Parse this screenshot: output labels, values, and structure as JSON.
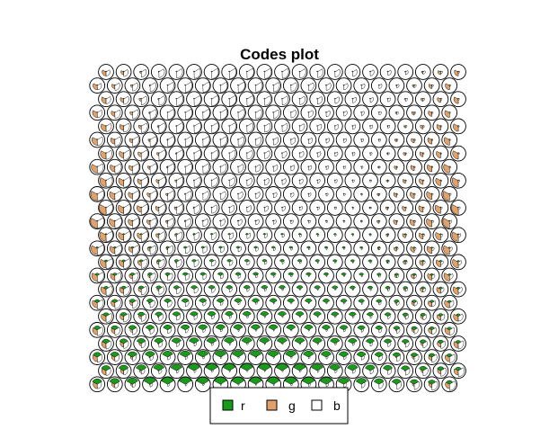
{
  "chart_data": {
    "type": "som-codes-fan",
    "title": "Codes plot",
    "grid": {
      "topology": "hexagonal",
      "columns": 21,
      "rows": 24
    },
    "variables": [
      "r",
      "g",
      "b"
    ],
    "colors": {
      "r": "#1a9a1a",
      "g": "#e0a26a",
      "b": "#ffffff",
      "outline": "#000000"
    },
    "legend": {
      "position": "bottom-center",
      "entries": [
        {
          "label": "r",
          "color": "#1a9a1a"
        },
        {
          "label": "g",
          "color": "#e0a26a"
        },
        {
          "label": "b",
          "color": "#ffffff"
        }
      ]
    }
  }
}
